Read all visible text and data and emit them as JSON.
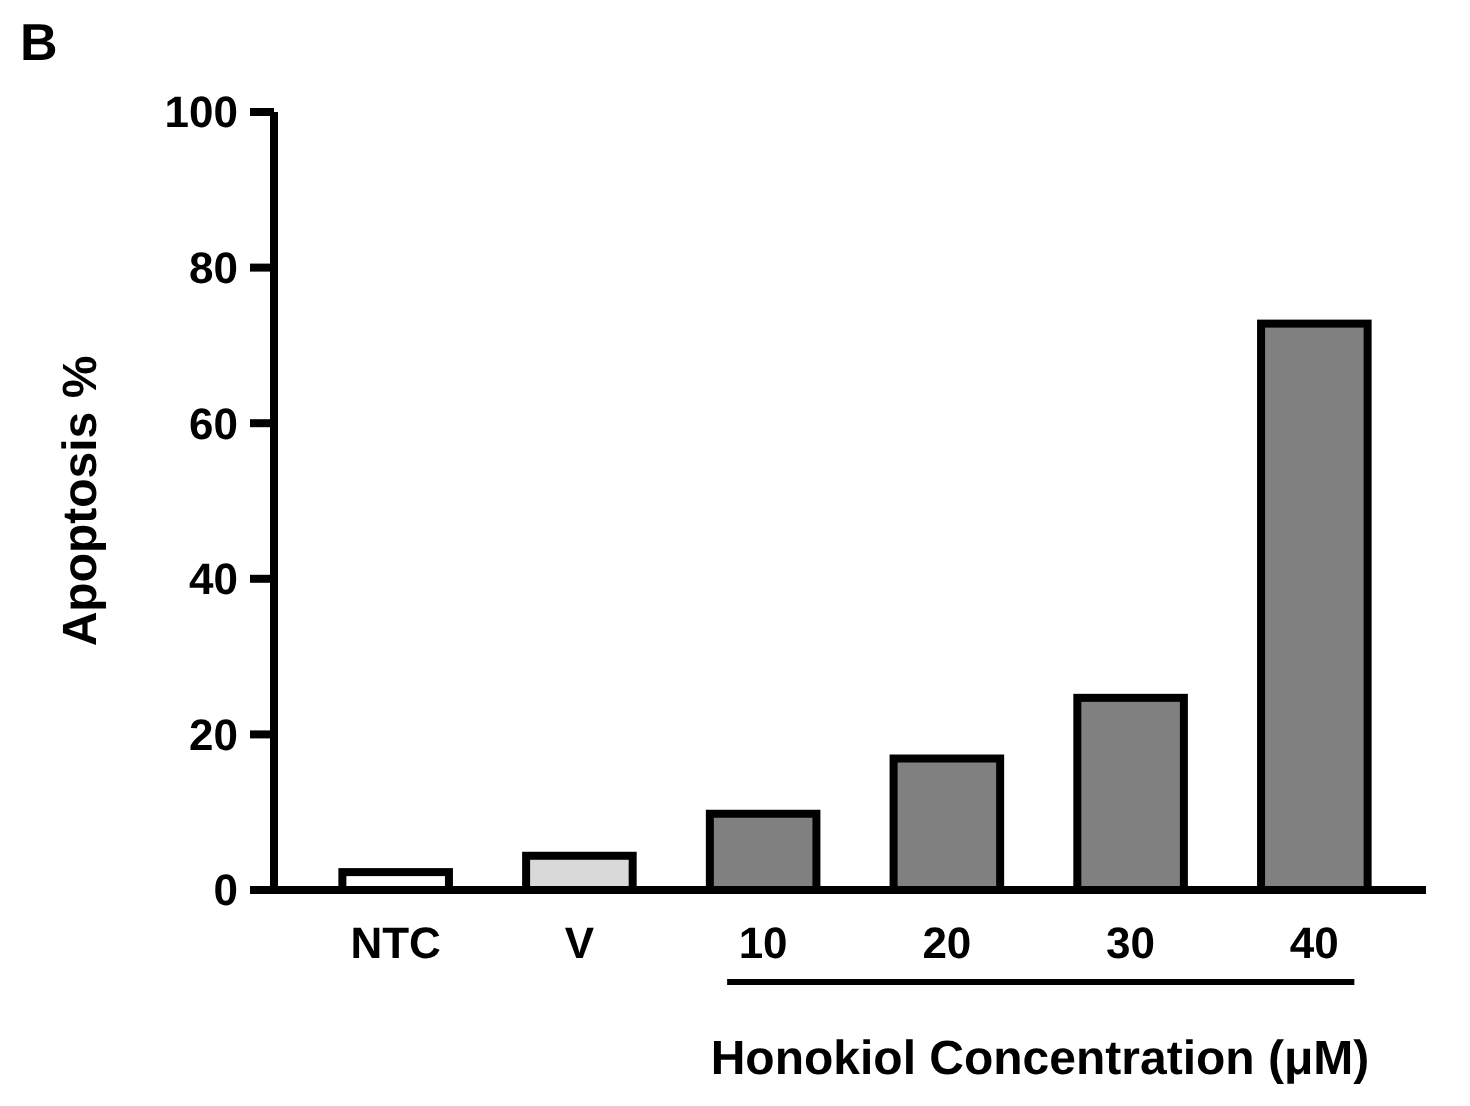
{
  "chart_data": {
    "type": "bar",
    "ylabel": "Apoptosis %",
    "xlabel": "Honokiol Concentration (μM)",
    "annotations": [
      "B"
    ],
    "categories": [
      "NTC",
      "V",
      "10",
      "20",
      "30",
      "40"
    ],
    "values": [
      2.3,
      4.4,
      9.8,
      16.9,
      24.7,
      72.8
    ],
    "colors": [
      "#ffffff",
      "#d9d9d9",
      "#808080",
      "#808080",
      "#808080",
      "#808080"
    ],
    "ylim": [
      0,
      100
    ],
    "yticks": [
      0,
      20,
      40,
      60,
      80,
      100
    ],
    "grid": false
  }
}
